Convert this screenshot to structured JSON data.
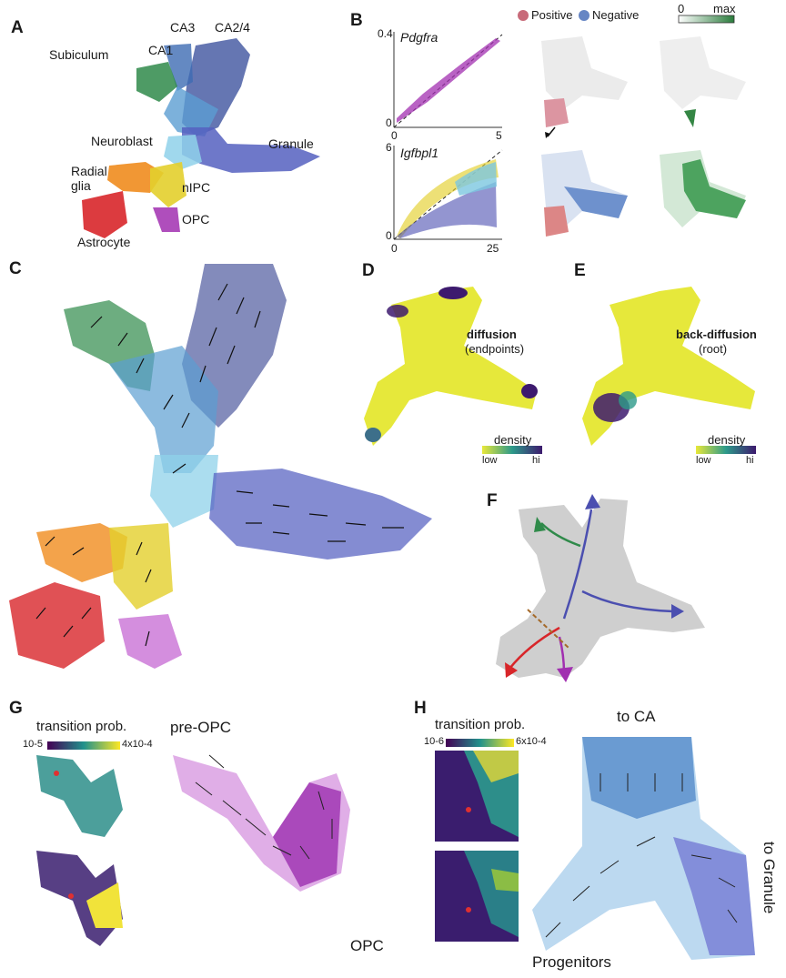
{
  "panels": {
    "a": {
      "letter": "A",
      "clusters": [
        "CA3",
        "CA2/4",
        "Subiculum",
        "CA1",
        "Neuroblast",
        "Granule",
        "Radial glia",
        "nIPC",
        "OPC",
        "Astrocyte"
      ]
    },
    "b": {
      "letter": "B",
      "legend_positive": "Positive",
      "legend_negative": "Negative",
      "scale_min": "0",
      "scale_max": "max",
      "plot1": {
        "gene": "Pdgfra",
        "y_tick_top": "0.4",
        "y_tick_zero": "0",
        "x_tick_zero": "0",
        "x_tick_end": "5"
      },
      "plot2": {
        "gene": "Igfbpl1",
        "y_tick_top": "6",
        "y_tick_zero": "0",
        "x_tick_zero": "0",
        "x_tick_end": "25"
      }
    },
    "c": {
      "letter": "C"
    },
    "d": {
      "letter": "D",
      "title": "diffusion",
      "subtitle": "(endpoints)",
      "cbar_title": "density",
      "cbar_low": "low",
      "cbar_high": "hi"
    },
    "e": {
      "letter": "E",
      "title": "back-diffusion",
      "subtitle": "(root)",
      "cbar_title": "density",
      "cbar_low": "low",
      "cbar_high": "hi"
    },
    "f": {
      "letter": "F"
    },
    "g": {
      "letter": "G",
      "cbar_title": "transition prob.",
      "cbar_low": "10-5",
      "cbar_high": "4x10-4",
      "label_top": "pre-OPC",
      "label_bottom": "OPC"
    },
    "h": {
      "letter": "H",
      "cbar_title": "transition prob.",
      "cbar_low": "10-6",
      "cbar_high": "6x10-4",
      "label_top": "to CA",
      "label_right": "to Granule",
      "label_bottom": "Progenitors"
    }
  },
  "colors": {
    "granule": "#4b4fb0",
    "ca": "#3b5e9c",
    "ca1": "#2f8a4a",
    "neuroblast": "#7cc7e0",
    "nipc": "#e3cf2c",
    "radial": "#f08c1e",
    "astro": "#d8262a",
    "opc": "#a12fb0",
    "positive": "#c86b7a",
    "negative": "#6786c4",
    "dens_low": "#e8e83a",
    "dens_high": "#3d1a6e",
    "viridis_low": "#440154",
    "viridis_mid": "#21918c",
    "viridis_high": "#fde725",
    "green_max": "#2a7c3c"
  }
}
